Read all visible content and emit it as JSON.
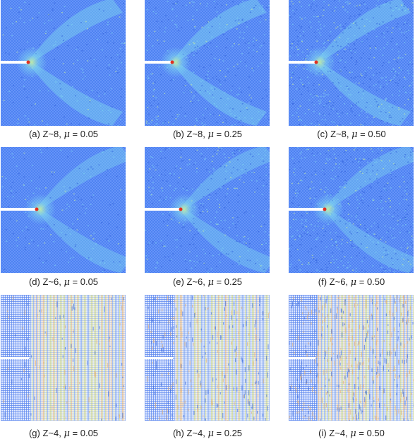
{
  "panels": [
    {
      "id": "a",
      "label": "(a)",
      "z": "Z~8,",
      "mu_symbol": "μ",
      "mu_value": "= 0.05",
      "style": "z8",
      "mu": 0.05
    },
    {
      "id": "b",
      "label": "(b)",
      "z": "Z~8,",
      "mu_symbol": "μ",
      "mu_value": "= 0.25",
      "style": "z8",
      "mu": 0.25
    },
    {
      "id": "c",
      "label": "(c)",
      "z": "Z~8,",
      "mu_symbol": "μ",
      "mu_value": "= 0.50",
      "style": "z8",
      "mu": 0.5
    },
    {
      "id": "d",
      "label": "(d)",
      "z": "Z~6,",
      "mu_symbol": "μ",
      "mu_value": "= 0.05",
      "style": "z6",
      "mu": 0.05
    },
    {
      "id": "e",
      "label": "(e)",
      "z": "Z~6,",
      "mu_symbol": "μ",
      "mu_value": "= 0.25",
      "style": "z6",
      "mu": 0.25
    },
    {
      "id": "f",
      "label": "(f)",
      "z": "Z~6,",
      "mu_symbol": "μ",
      "mu_value": "= 0.50",
      "style": "z6",
      "mu": 0.5
    },
    {
      "id": "g",
      "label": "(g)",
      "z": "Z~4,",
      "mu_symbol": "μ",
      "mu_value": "= 0.05",
      "style": "z4",
      "mu": 0.05
    },
    {
      "id": "h",
      "label": "(h)",
      "z": "Z~4,",
      "mu_symbol": "μ",
      "mu_value": "= 0.25",
      "style": "z4",
      "mu": 0.25
    },
    {
      "id": "i",
      "label": "(i)",
      "z": "Z~4,",
      "mu_symbol": "μ",
      "mu_value": "= 0.50",
      "style": "z4",
      "mu": 0.5
    }
  ],
  "colors": {
    "base": "#4a7ff0",
    "lattice": "#7aa3ff",
    "stress_mid": "#7fd6f0",
    "stress_high": "#c8f0a0",
    "yellow": "#f0e890",
    "crack": "#ffffff",
    "tip_red": "#e03020"
  }
}
